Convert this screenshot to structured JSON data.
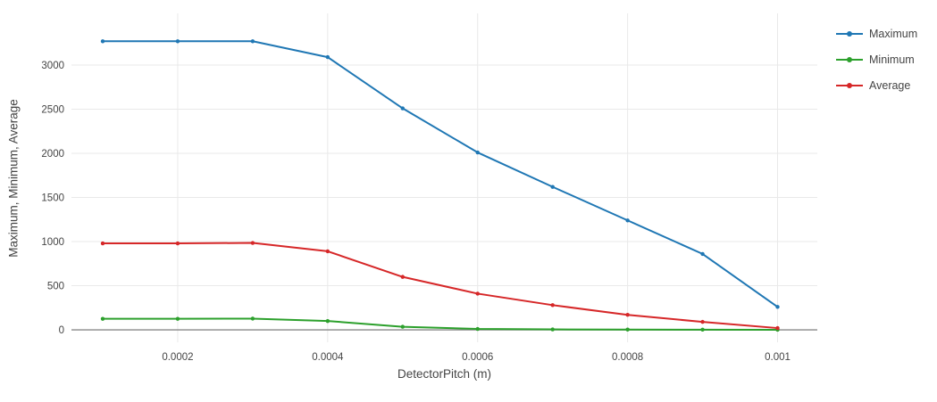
{
  "chart_data": {
    "type": "line",
    "x": [
      0.0001,
      0.0002,
      0.0003,
      0.0004,
      0.0005,
      0.0006,
      0.0007,
      0.0008,
      0.0009,
      0.001
    ],
    "series": [
      {
        "name": "Maximum",
        "color": "#1f77b4",
        "values": [
          3270,
          3270,
          3270,
          3090,
          2510,
          2010,
          1620,
          1240,
          860,
          260
        ]
      },
      {
        "name": "Minimum",
        "color": "#2ca02c",
        "values": [
          125,
          125,
          127,
          100,
          35,
          10,
          5,
          3,
          2,
          1
        ]
      },
      {
        "name": "Average",
        "color": "#d62728",
        "values": [
          980,
          980,
          985,
          890,
          600,
          410,
          280,
          170,
          90,
          20
        ]
      }
    ],
    "title": "",
    "xlabel": "DetectorPitch (m)",
    "ylabel": "Maximum, Minimum, Average",
    "x_ticks": [
      0.0002,
      0.0004,
      0.0006,
      0.0008,
      0.001
    ],
    "x_tick_labels": [
      "0.0002",
      "0.0004",
      "0.0006",
      "0.0008",
      "0.001"
    ],
    "y_ticks": [
      0,
      500,
      1000,
      1500,
      2000,
      2500,
      3000
    ],
    "y_tick_labels": [
      "0",
      "500",
      "1000",
      "1500",
      "2000",
      "2500",
      "3000"
    ],
    "xlim": [
      5.83e-05,
      0.001053
    ],
    "ylim": [
      -141,
      3586
    ],
    "grid": true,
    "legend_position": "right",
    "colors": {
      "gridline": "#e9e9e9",
      "zeroline": "#888888",
      "tick_text": "#444444"
    }
  }
}
